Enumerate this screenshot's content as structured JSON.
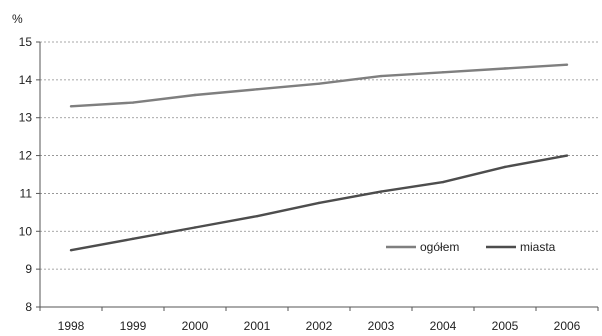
{
  "chart_data": {
    "type": "line",
    "unit_label": "%",
    "x": [
      "1998",
      "1999",
      "2000",
      "2001",
      "2002",
      "2003",
      "2004",
      "2005",
      "2006"
    ],
    "ylim": [
      8,
      15
    ],
    "yticks": [
      "8",
      "9",
      "10",
      "11",
      "12",
      "13",
      "14",
      "15"
    ],
    "grid": "horizontal dashed",
    "legend_position": "lower-right",
    "series": [
      {
        "name": "ogółem",
        "color": "#7f7f7f",
        "values": [
          13.3,
          13.4,
          13.6,
          13.75,
          13.9,
          14.1,
          14.2,
          14.3,
          14.4
        ]
      },
      {
        "name": "miasta",
        "color": "#4d4d4d",
        "values": [
          9.5,
          9.8,
          10.1,
          10.4,
          10.75,
          11.05,
          11.3,
          11.7,
          12.0
        ]
      }
    ]
  }
}
